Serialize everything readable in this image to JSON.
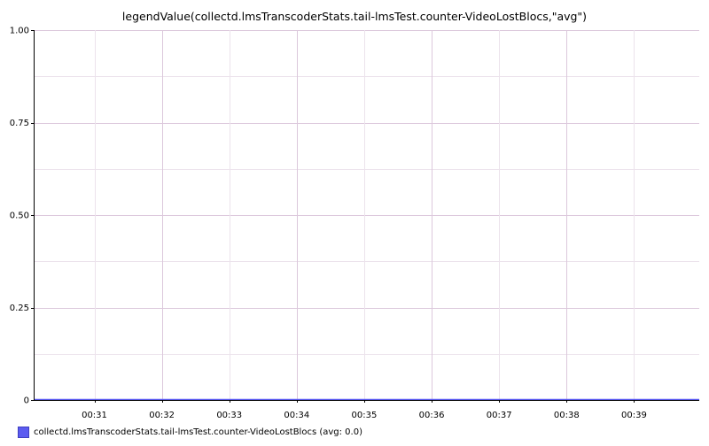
{
  "chart_data": {
    "type": "line",
    "title": "legendValue(collectd.lmsTranscoderStats.tail-lmsTest.counter-VideoLostBlocs,\"avg\")",
    "xlabel": "",
    "ylabel": "",
    "x_range": [
      "00:30:06",
      "00:39:58"
    ],
    "ylim": [
      0,
      1
    ],
    "y_ticks": [
      {
        "value": 0,
        "label": "0"
      },
      {
        "value": 0.25,
        "label": "0.25"
      },
      {
        "value": 0.5,
        "label": "0.50"
      },
      {
        "value": 0.75,
        "label": "0.75"
      },
      {
        "value": 1,
        "label": "1.00"
      }
    ],
    "x_ticks": [
      {
        "time": "00:31:00",
        "label": "00:31"
      },
      {
        "time": "00:32:00",
        "label": "00:32"
      },
      {
        "time": "00:33:00",
        "label": "00:33"
      },
      {
        "time": "00:34:00",
        "label": "00:34"
      },
      {
        "time": "00:35:00",
        "label": "00:35"
      },
      {
        "time": "00:36:00",
        "label": "00:36"
      },
      {
        "time": "00:37:00",
        "label": "00:37"
      },
      {
        "time": "00:38:00",
        "label": "00:38"
      },
      {
        "time": "00:39:00",
        "label": "00:39"
      }
    ],
    "grid": true,
    "legend_position": "bottom-left",
    "series": [
      {
        "name": "collectd.lmsTranscoderStats.tail-lmsTest.counter-VideoLostBlocs (avg: 0.0)",
        "color": "#5b5bf0",
        "x": [
          "00:30:06",
          "00:39:58"
        ],
        "values": [
          0,
          0
        ]
      }
    ],
    "colors": {
      "grid_major": "#dcc8dc",
      "grid_minor": "#ece3ec",
      "axis": "#000000"
    }
  }
}
